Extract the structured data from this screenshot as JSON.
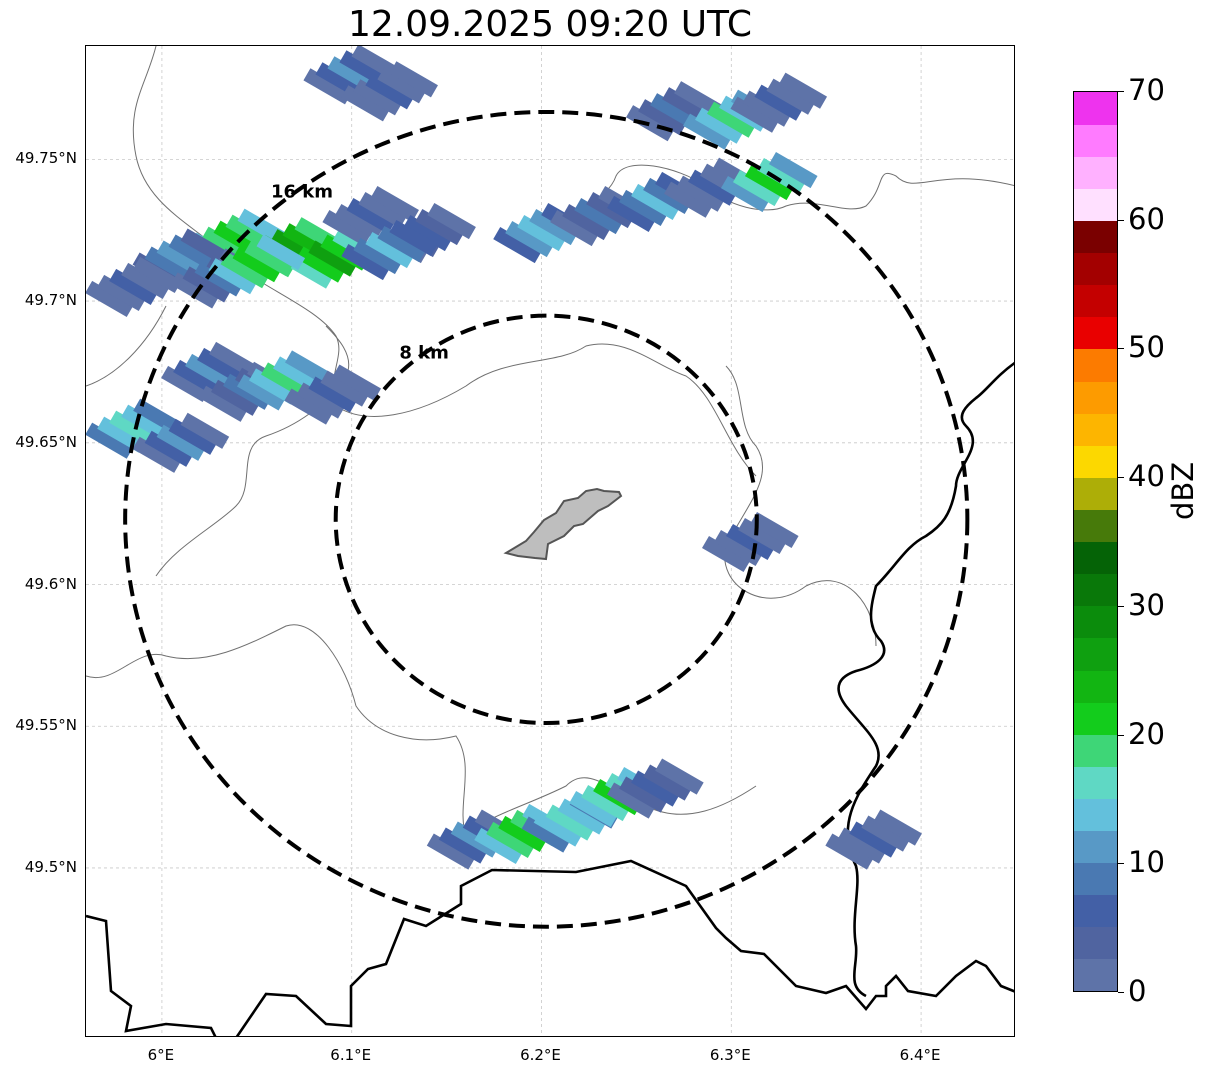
{
  "title": "12.09.2025 09:20 UTC",
  "map": {
    "center_lon": 6.2025,
    "center_lat": 49.623,
    "lon_range": [
      5.96,
      6.45
    ],
    "lat_range": [
      49.44,
      49.79
    ],
    "lat_ticks": [
      {
        "value": 49.5,
        "label": "49.5°N"
      },
      {
        "value": 49.55,
        "label": "49.55°N"
      },
      {
        "value": 49.6,
        "label": "49.6°N"
      },
      {
        "value": 49.65,
        "label": "49.65°N"
      },
      {
        "value": 49.7,
        "label": "49.7°N"
      },
      {
        "value": 49.75,
        "label": "49.75°N"
      }
    ],
    "lon_ticks": [
      {
        "value": 6.0,
        "label": "6°E"
      },
      {
        "value": 6.1,
        "label": "6.1°E"
      },
      {
        "value": 6.2,
        "label": "6.2°E"
      },
      {
        "value": 6.3,
        "label": "6.3°E"
      },
      {
        "value": 6.4,
        "label": "6.4°E"
      }
    ],
    "range_rings": [
      {
        "radius_km": 8,
        "label": "8 km"
      },
      {
        "radius_km": 16,
        "label": "16 km"
      }
    ],
    "grid": true
  },
  "colorbar": {
    "unit": "dBZ",
    "min": 0,
    "max": 70,
    "tick_labels": [
      {
        "value": 0,
        "label": "0"
      },
      {
        "value": 10,
        "label": "10"
      },
      {
        "value": 20,
        "label": "20"
      },
      {
        "value": 30,
        "label": "30"
      },
      {
        "value": 40,
        "label": "40"
      },
      {
        "value": 50,
        "label": "50"
      },
      {
        "value": 60,
        "label": "60"
      },
      {
        "value": 70,
        "label": "70"
      }
    ],
    "colors": [
      "#5e73a8",
      "#5064a0",
      "#4360a6",
      "#4a79b2",
      "#5899c6",
      "#63c0dc",
      "#5fd8c4",
      "#3ed677",
      "#13cc1c",
      "#12b512",
      "#0fa010",
      "#0b8c0c",
      "#097809",
      "#056306",
      "#477a0a",
      "#adae07",
      "#fcd800",
      "#fdb500",
      "#fd9b00",
      "#fc7b00",
      "#e90000",
      "#c40000",
      "#a30000",
      "#7a0000",
      "#ffe0ff",
      "#ffb1ff",
      "#ff7bff",
      "#ee33ee"
    ]
  },
  "precip_cells": [
    {
      "lon": 6.04,
      "lat": 49.722,
      "dbz": 22
    },
    {
      "lon": 6.07,
      "lat": 49.719,
      "dbz": 27
    },
    {
      "lon": 6.09,
      "lat": 49.715,
      "dbz": 25
    },
    {
      "lon": 6.01,
      "lat": 49.715,
      "dbz": 12
    },
    {
      "lon": 6.03,
      "lat": 49.708,
      "dbz": 8
    },
    {
      "lon": 6.05,
      "lat": 49.713,
      "dbz": 22
    },
    {
      "lon": 5.985,
      "lat": 49.705,
      "dbz": 6
    },
    {
      "lon": 6.11,
      "lat": 49.73,
      "dbz": 5
    },
    {
      "lon": 6.14,
      "lat": 49.724,
      "dbz": 7
    },
    {
      "lon": 6.12,
      "lat": 49.718,
      "dbz": 13
    },
    {
      "lon": 6.025,
      "lat": 49.675,
      "dbz": 10
    },
    {
      "lon": 6.045,
      "lat": 49.668,
      "dbz": 8
    },
    {
      "lon": 6.065,
      "lat": 49.672,
      "dbz": 18
    },
    {
      "lon": 6.09,
      "lat": 49.667,
      "dbz": 6
    },
    {
      "lon": 5.985,
      "lat": 49.655,
      "dbz": 17
    },
    {
      "lon": 6.01,
      "lat": 49.65,
      "dbz": 10
    },
    {
      "lon": 6.1,
      "lat": 49.78,
      "dbz": 10
    },
    {
      "lon": 6.12,
      "lat": 49.774,
      "dbz": 6
    },
    {
      "lon": 6.27,
      "lat": 49.767,
      "dbz": 8
    },
    {
      "lon": 6.3,
      "lat": 49.764,
      "dbz": 18
    },
    {
      "lon": 6.325,
      "lat": 49.77,
      "dbz": 6
    },
    {
      "lon": 6.2,
      "lat": 49.724,
      "dbz": 14
    },
    {
      "lon": 6.23,
      "lat": 49.73,
      "dbz": 8
    },
    {
      "lon": 6.26,
      "lat": 49.735,
      "dbz": 13
    },
    {
      "lon": 6.29,
      "lat": 49.74,
      "dbz": 6
    },
    {
      "lon": 6.32,
      "lat": 49.742,
      "dbz": 20
    },
    {
      "lon": 6.31,
      "lat": 49.615,
      "dbz": 5
    },
    {
      "lon": 6.165,
      "lat": 49.51,
      "dbz": 10
    },
    {
      "lon": 6.19,
      "lat": 49.512,
      "dbz": 22
    },
    {
      "lon": 6.215,
      "lat": 49.516,
      "dbz": 17
    },
    {
      "lon": 6.24,
      "lat": 49.525,
      "dbz": 21
    },
    {
      "lon": 6.26,
      "lat": 49.528,
      "dbz": 7
    },
    {
      "lon": 6.375,
      "lat": 49.51,
      "dbz": 6
    }
  ]
}
